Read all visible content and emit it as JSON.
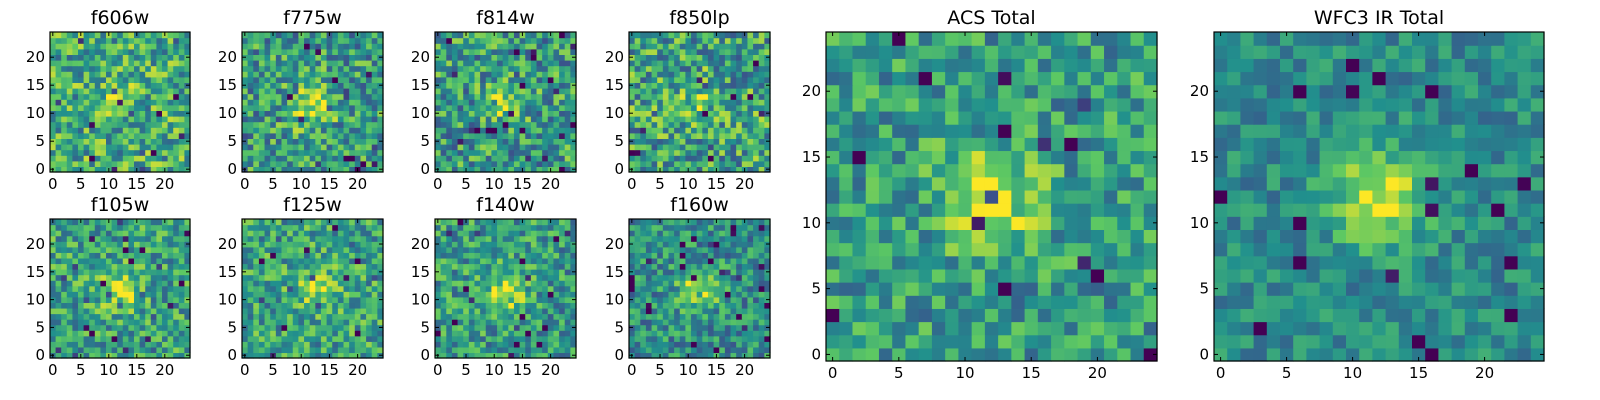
{
  "figure_title": "",
  "colormap": [
    "#440154",
    "#3b528b",
    "#21908d",
    "#5dc863",
    "#fde725"
  ],
  "chart_data": [
    {
      "type": "heatmap",
      "title": "f606w",
      "grid": [
        25,
        25
      ],
      "xlim": [
        0,
        25
      ],
      "ylim": [
        0,
        25
      ],
      "xticks": [
        0,
        5,
        10,
        15,
        20
      ],
      "yticks": [
        0,
        5,
        10,
        15,
        20
      ],
      "peak": [
        11,
        13
      ],
      "peak_strength": 0.12,
      "noise": 0.3,
      "base": 0.62,
      "seed": 3
    },
    {
      "type": "heatmap",
      "title": "f775w",
      "grid": [
        25,
        25
      ],
      "xlim": [
        0,
        25
      ],
      "ylim": [
        0,
        25
      ],
      "xticks": [
        0,
        5,
        10,
        15,
        20
      ],
      "yticks": [
        0,
        5,
        10,
        15,
        20
      ],
      "peak": [
        12,
        11
      ],
      "peak_strength": 0.35,
      "noise": 0.3,
      "base": 0.55,
      "seed": 7
    },
    {
      "type": "heatmap",
      "title": "f814w",
      "grid": [
        25,
        25
      ],
      "xlim": [
        0,
        25
      ],
      "ylim": [
        0,
        25
      ],
      "xticks": [
        0,
        5,
        10,
        15,
        20
      ],
      "yticks": [
        0,
        5,
        10,
        15,
        20
      ],
      "peak": [
        12,
        12
      ],
      "peak_strength": 0.3,
      "noise": 0.3,
      "base": 0.55,
      "seed": 11
    },
    {
      "type": "heatmap",
      "title": "f850lp",
      "grid": [
        25,
        25
      ],
      "xlim": [
        0,
        25
      ],
      "ylim": [
        0,
        25
      ],
      "xticks": [
        0,
        5,
        10,
        15,
        20
      ],
      "yticks": [
        0,
        5,
        10,
        15,
        20
      ],
      "peak": [
        12,
        12
      ],
      "peak_strength": 0.18,
      "noise": 0.32,
      "base": 0.58,
      "seed": 17
    },
    {
      "type": "heatmap",
      "title": "f105w",
      "grid": [
        25,
        25
      ],
      "xlim": [
        0,
        25
      ],
      "ylim": [
        0,
        25
      ],
      "xticks": [
        0,
        5,
        10,
        15,
        20
      ],
      "yticks": [
        0,
        5,
        10,
        15,
        20
      ],
      "peak": [
        12,
        12
      ],
      "peak_strength": 0.3,
      "noise": 0.26,
      "base": 0.58,
      "seed": 23
    },
    {
      "type": "heatmap",
      "title": "f125w",
      "grid": [
        25,
        25
      ],
      "xlim": [
        0,
        25
      ],
      "ylim": [
        0,
        25
      ],
      "xticks": [
        0,
        5,
        10,
        15,
        20
      ],
      "yticks": [
        0,
        5,
        10,
        15,
        20
      ],
      "peak": [
        13,
        12
      ],
      "peak_strength": 0.28,
      "noise": 0.26,
      "base": 0.58,
      "seed": 29
    },
    {
      "type": "heatmap",
      "title": "f140w",
      "grid": [
        25,
        25
      ],
      "xlim": [
        0,
        25
      ],
      "ylim": [
        0,
        25
      ],
      "xticks": [
        0,
        5,
        10,
        15,
        20
      ],
      "yticks": [
        0,
        5,
        10,
        15,
        20
      ],
      "peak": [
        12,
        11
      ],
      "peak_strength": 0.32,
      "noise": 0.26,
      "base": 0.55,
      "seed": 31
    },
    {
      "type": "heatmap",
      "title": "f160w",
      "grid": [
        25,
        25
      ],
      "xlim": [
        0,
        25
      ],
      "ylim": [
        0,
        25
      ],
      "xticks": [
        0,
        5,
        10,
        15,
        20
      ],
      "yticks": [
        0,
        5,
        10,
        15,
        20
      ],
      "peak": [
        12,
        12
      ],
      "peak_strength": 0.38,
      "noise": 0.24,
      "base": 0.5,
      "seed": 37
    },
    {
      "type": "heatmap",
      "title": "ACS Total",
      "grid": [
        25,
        25
      ],
      "xlim": [
        0,
        25
      ],
      "ylim": [
        0,
        25
      ],
      "xticks": [
        0,
        5,
        10,
        15,
        20
      ],
      "yticks": [
        0,
        5,
        10,
        15,
        20
      ],
      "peak": [
        12,
        12
      ],
      "peak_strength": 0.38,
      "noise": 0.24,
      "base": 0.55,
      "seed": 41
    },
    {
      "type": "heatmap",
      "title": "WFC3 IR Total",
      "grid": [
        25,
        25
      ],
      "xlim": [
        0,
        25
      ],
      "ylim": [
        0,
        25
      ],
      "xticks": [
        0,
        5,
        10,
        15,
        20
      ],
      "yticks": [
        0,
        5,
        10,
        15,
        20
      ],
      "peak": [
        12,
        12
      ],
      "peak_strength": 0.45,
      "noise": 0.16,
      "base": 0.48,
      "seed": 43
    }
  ]
}
